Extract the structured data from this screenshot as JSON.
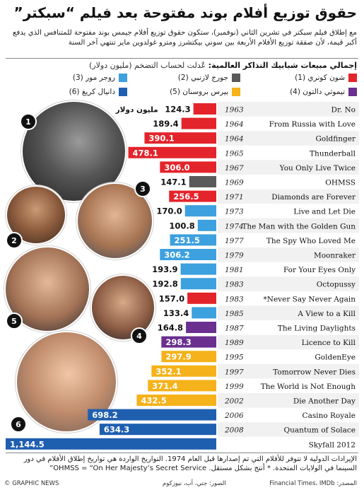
{
  "header": {
    "title": "حقوق توزيع أفلام بوند مفتوحة بعد فيلم “سبكتر”",
    "subtitle": "مع إطلاق فيلم سبكتر في تشرين الثاني (نوفمبر)، ستكون حقوق توزيع أفلام جيمس بوند مفتوحة للمتنافس الذي يدفع أكبر قيمة، لأن صفقة توزيع الأفلام الأربعة بين سوني بيكتشرز ومترو غولدوين ماير تنتهي آخر السنة"
  },
  "section": {
    "heading": "إجمالي مبيعات شبابيك التذاكر العالمية:",
    "note": " عُدلت لحساب التضخم (مليون دولار)"
  },
  "legend": [
    {
      "label": "شون كونري (1)",
      "color": "#e3242b"
    },
    {
      "label": "جورج لازنبي (2)",
      "color": "#5a5a5a"
    },
    {
      "label": "روجر مور (3)",
      "color": "#3da0df"
    },
    {
      "label": "تيموثي دالتون (4)",
      "color": "#6a2f8f"
    },
    {
      "label": "بيرس بروسنان (5)",
      "color": "#f5b21a"
    },
    {
      "label": "دانيال كريغ (6)",
      "color": "#1f5fb0"
    }
  ],
  "chart_data": {
    "type": "bar",
    "orientation": "horizontal",
    "value_unit_label": "مليون دولار",
    "films": [
      {
        "title": "Dr. No",
        "year": "1963",
        "value": 124.3,
        "label": "124.3",
        "actor": 0
      },
      {
        "title": "From Russia with Love",
        "year": "1964",
        "value": 189.4,
        "label": "189.4",
        "actor": 0
      },
      {
        "title": "Goldfinger",
        "year": "1964",
        "value": 390.1,
        "label": "390.1",
        "actor": 0
      },
      {
        "title": "Thunderball",
        "year": "1965",
        "value": 478.1,
        "label": "478.1",
        "actor": 0
      },
      {
        "title": "You Only Live Twice",
        "year": "1967",
        "value": 306.0,
        "label": "306.0",
        "actor": 0
      },
      {
        "title": "OHMSS",
        "year": "1969",
        "value": 147.1,
        "label": "147.1",
        "actor": 1
      },
      {
        "title": "Diamonds are Forever",
        "year": "1971",
        "value": 256.5,
        "label": "256.5",
        "actor": 0
      },
      {
        "title": "Live and Let Die",
        "year": "1973",
        "value": 170.0,
        "label": "170.0",
        "actor": 2
      },
      {
        "title": "The Man with the Golden Gun",
        "year": "1974",
        "value": 100.8,
        "label": "100.8",
        "actor": 2
      },
      {
        "title": "The Spy Who Loved Me",
        "year": "1977",
        "value": 251.5,
        "label": "251.5",
        "actor": 2
      },
      {
        "title": "Moonraker",
        "year": "1979",
        "value": 306.2,
        "label": "306.2",
        "actor": 2
      },
      {
        "title": "For Your Eyes Only",
        "year": "1981",
        "value": 193.9,
        "label": "193.9",
        "actor": 2
      },
      {
        "title": "Octopussy",
        "year": "1983",
        "value": 192.8,
        "label": "192.8",
        "actor": 2
      },
      {
        "title": "*Never Say Never Again",
        "year": "1983",
        "value": 157.0,
        "label": "157.0",
        "actor": 0
      },
      {
        "title": "A View to a Kill",
        "year": "1985",
        "value": 133.4,
        "label": "133.4",
        "actor": 2
      },
      {
        "title": "The Living Daylights",
        "year": "1987",
        "value": 164.8,
        "label": "164.8",
        "actor": 3
      },
      {
        "title": "Licence to Kill",
        "year": "1989",
        "value": 298.3,
        "label": "298.3",
        "actor": 3
      },
      {
        "title": "GoldenEye",
        "year": "1995",
        "value": 297.9,
        "label": "297.9",
        "actor": 4
      },
      {
        "title": "Tomorrow Never Dies",
        "year": "1997",
        "value": 352.1,
        "label": "352.1",
        "actor": 4
      },
      {
        "title": "The World is Not Enough",
        "year": "1999",
        "value": 371.4,
        "label": "371.4",
        "actor": 4
      },
      {
        "title": "Die Another Day",
        "year": "2002",
        "value": 432.5,
        "label": "432.5",
        "actor": 4
      },
      {
        "title": "Casino Royale",
        "year": "2006",
        "value": 698.2,
        "label": "698.2",
        "actor": 5
      },
      {
        "title": "Quantum of Solace",
        "year": "2008",
        "value": 634.3,
        "label": "634.3",
        "actor": 5
      },
      {
        "title": "Skyfall 2012",
        "year": "",
        "value": 1144.5,
        "label": "1,144.5",
        "actor": 5
      }
    ]
  },
  "portraits": [
    {
      "number": "1"
    },
    {
      "number": "2"
    },
    {
      "number": "3"
    },
    {
      "number": "4"
    },
    {
      "number": "5"
    },
    {
      "number": "6"
    }
  ],
  "footer": {
    "notes": "الإيرادات الدولية لا تتوفر للأفلام التي تم إصدارها قبل العام 1974. التواريخ الواردة هي تواريخ إطلاق الأفلام في دور السينما في الولايات المتحدة. * أنتج بشكل مستقل. OHMSS = “On Her Majesty’s Secret Service”",
    "source": "المصدر: Financial Times، IMDb",
    "photos": "الصور: جتي، أب، نيوزكوم",
    "brand": "© GRAPHIC NEWS"
  }
}
